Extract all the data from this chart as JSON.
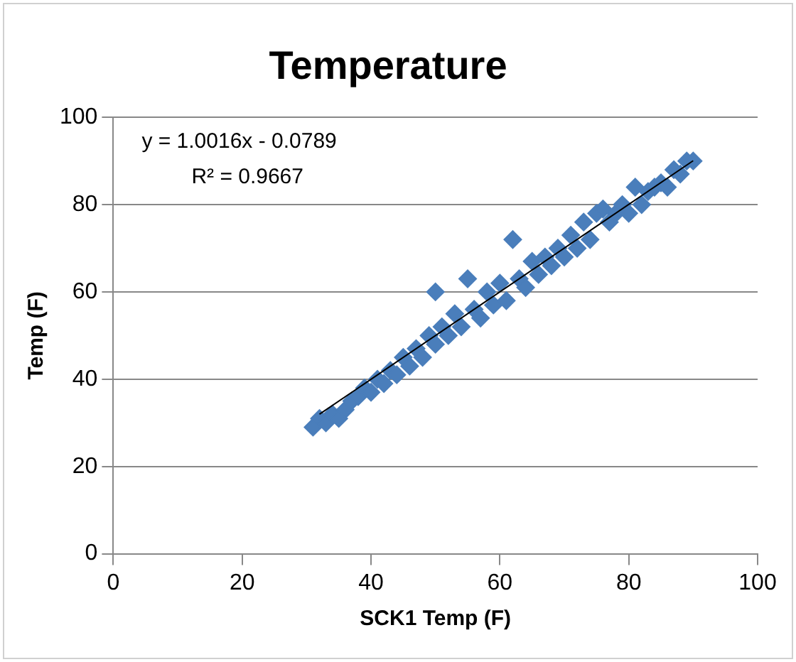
{
  "chart_data": {
    "type": "scatter",
    "title": "Temperature",
    "xlabel": "SCK1 Temp (F)",
    "ylabel": "Temp (F)",
    "annotations": [
      "y = 1.0016x - 0.0789",
      "R² = 0.9667"
    ],
    "xlim": [
      0,
      100
    ],
    "xticks": [
      0,
      20,
      40,
      60,
      80,
      100
    ],
    "ylim": [
      0,
      100
    ],
    "yticks": [
      0,
      20,
      40,
      60,
      80,
      100
    ],
    "grid": "y",
    "marker": "diamond",
    "series": [
      {
        "color": "#4a7ebb",
        "x": [
          31,
          32,
          33,
          34,
          35,
          36,
          37,
          38,
          39,
          40,
          41,
          42,
          43,
          44,
          45,
          46,
          47,
          48,
          49,
          50,
          50,
          51,
          52,
          53,
          54,
          55,
          56,
          57,
          58,
          59,
          60,
          61,
          62,
          63,
          64,
          65,
          66,
          67,
          68,
          69,
          70,
          71,
          72,
          73,
          74,
          75,
          76,
          77,
          78,
          79,
          80,
          81,
          82,
          83,
          84,
          85,
          86,
          87,
          88,
          89,
          90
        ],
        "values": [
          29,
          31,
          30,
          32,
          31,
          33,
          35,
          36,
          38,
          37,
          40,
          39,
          42,
          41,
          45,
          43,
          47,
          45,
          50,
          48,
          60,
          52,
          50,
          55,
          52,
          63,
          56,
          54,
          60,
          57,
          62,
          58,
          72,
          63,
          61,
          67,
          64,
          68,
          66,
          70,
          68,
          73,
          70,
          76,
          72,
          78,
          79,
          76,
          78,
          80,
          78,
          84,
          80,
          83,
          84,
          85,
          84,
          88,
          87,
          90,
          90
        ]
      },
      {
        "type": "line",
        "color": "#000000",
        "marker": "none",
        "x": [
          32,
          90
        ],
        "values": [
          31.97,
          90.07
        ]
      }
    ]
  }
}
